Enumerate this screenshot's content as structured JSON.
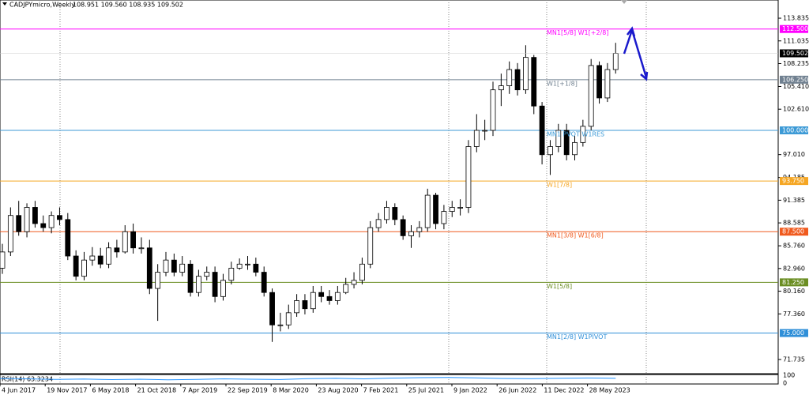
{
  "chart_data": {
    "type": "candlestick",
    "title": "CADJPYmicro,Weekly",
    "ohlc_label": "108.951 109.560 108.935 109.502",
    "ylim": [
      69.98,
      116.08
    ],
    "yticks": [
      113.835,
      111.035,
      108.235,
      {
        "value": 105.41,
        "label": "105.410"
      },
      {
        "value": 102.61,
        "label": "102.610"
      },
      {
        "value": 97.01,
        "label": "97.010"
      },
      94.185,
      91.385,
      88.585,
      {
        "value": 85.76,
        "label": "85.760"
      },
      {
        "value": 82.96,
        "label": "82.960"
      },
      {
        "value": 80.16,
        "label": "80.160"
      },
      {
        "value": 77.36,
        "label": "77.360"
      },
      71.735
    ],
    "categories": [
      "4 Jun 2017",
      "19 Nov 2017",
      "6 May 2018",
      "21 Oct 2018",
      "7 Apr 2019",
      "22 Sep 2019",
      "8 Mar 2020",
      "23 Aug 2020",
      "7 Feb 2021",
      "25 Jul 2021",
      "9 Jan 2022",
      "26 Jun 2022",
      "11 Dec 2022",
      "28 May 2023"
    ],
    "open": [
      83.0,
      85.0,
      89.5,
      87.5,
      90.5,
      88.5,
      88.0,
      89.5,
      89.0,
      84.5,
      82.0,
      84.0,
      84.5,
      83.5,
      85.5,
      85.0,
      87.5,
      85.5,
      85.5,
      80.5,
      82.5,
      84.0,
      82.5,
      83.5,
      80.0,
      82.0,
      82.5,
      79.5,
      81.5,
      83.0,
      83.5,
      83.5,
      82.5,
      80.0,
      76.0,
      76.0,
      77.5,
      79.0,
      78.0,
      80.0,
      79.5,
      79.0,
      80.0,
      81.0,
      81.5,
      83.5,
      88.0,
      89.0,
      90.5,
      89.0,
      87.0,
      87.5,
      88.0,
      92.0,
      88.5,
      90.0,
      90.5,
      90.5,
      98.0,
      100.0,
      100.0,
      105.0,
      105.5,
      107.5,
      105.0,
      109.0,
      103.0,
      97.0,
      98.0,
      100.0,
      97.0,
      98.5,
      100.5,
      108.0,
      104.0,
      107.5
    ],
    "high": [
      86.0,
      90.5,
      91.3,
      91.0,
      91.3,
      89.5,
      90.0,
      90.5,
      89.8,
      85.2,
      85.0,
      85.6,
      85.5,
      86.2,
      86.5,
      88.3,
      88.5,
      86.8,
      86.5,
      83.5,
      85.0,
      84.8,
      84.5,
      84.0,
      82.8,
      83.2,
      83.2,
      82.3,
      83.8,
      84.2,
      84.5,
      84.3,
      83.2,
      80.5,
      77.5,
      78.5,
      79.8,
      79.8,
      80.8,
      80.8,
      80.3,
      80.8,
      81.8,
      82.5,
      84.3,
      88.8,
      89.8,
      91.3,
      91.0,
      89.5,
      88.3,
      88.8,
      92.8,
      92.3,
      90.8,
      91.3,
      91.5,
      98.8,
      102.0,
      101.3,
      106.0,
      107.0,
      108.5,
      108.3,
      110.5,
      109.3,
      103.5,
      98.8,
      100.8,
      100.8,
      99.3,
      101.3,
      108.8,
      108.5,
      108.3,
      110.8
    ],
    "low": [
      82.3,
      84.5,
      87.0,
      86.8,
      88.0,
      87.5,
      87.3,
      88.3,
      84.0,
      81.5,
      81.5,
      83.3,
      83.0,
      83.0,
      84.3,
      84.8,
      84.8,
      84.8,
      79.8,
      76.5,
      82.0,
      82.0,
      82.0,
      79.5,
      79.5,
      81.5,
      78.8,
      79.0,
      81.0,
      82.8,
      82.8,
      82.0,
      79.5,
      73.9,
      75.2,
      75.5,
      77.0,
      77.3,
      77.5,
      78.8,
      78.5,
      78.5,
      79.8,
      80.5,
      81.0,
      83.0,
      87.5,
      88.5,
      88.3,
      86.5,
      85.5,
      86.8,
      87.5,
      87.8,
      87.8,
      89.3,
      89.5,
      89.8,
      97.3,
      98.8,
      99.3,
      103.0,
      104.5,
      104.3,
      104.5,
      102.0,
      95.8,
      94.5,
      97.3,
      96.3,
      96.3,
      98.0,
      100.0,
      103.3,
      103.5,
      107.0
    ],
    "close": [
      85.0,
      89.5,
      87.5,
      90.5,
      88.5,
      88.0,
      89.5,
      89.0,
      84.5,
      82.0,
      84.0,
      84.5,
      83.5,
      85.5,
      85.0,
      87.5,
      85.5,
      85.5,
      80.5,
      82.5,
      84.0,
      82.5,
      83.5,
      80.0,
      82.0,
      82.5,
      79.5,
      81.5,
      83.0,
      83.5,
      83.5,
      82.5,
      80.0,
      76.0,
      76.0,
      77.5,
      79.0,
      78.0,
      80.0,
      79.5,
      79.0,
      80.0,
      81.0,
      81.5,
      83.5,
      88.0,
      89.0,
      90.5,
      89.0,
      87.0,
      87.5,
      88.0,
      92.0,
      88.5,
      90.0,
      90.5,
      90.5,
      98.0,
      100.0,
      100.0,
      105.0,
      105.5,
      107.5,
      105.0,
      109.0,
      103.0,
      97.0,
      98.0,
      100.0,
      97.0,
      98.5,
      100.5,
      108.0,
      104.0,
      107.5,
      109.5
    ],
    "current_price": 109.502,
    "levels": [
      {
        "value": 112.5,
        "label": "112.500",
        "name": "MN1[5/8] W1[+2/8]",
        "color": "#ff00ff"
      },
      {
        "value": 106.25,
        "label": "106.250",
        "name": "W1[+1/8]",
        "color": "#708090"
      },
      {
        "value": 100,
        "label": "100.000",
        "name": "MN1 PVOT W1RES",
        "color": "#3c9ad6"
      },
      {
        "value": 93.75,
        "label": "93.750",
        "name": "W1[7/8]",
        "color": "#f5a623"
      },
      {
        "value": 87.5,
        "label": "87.500",
        "name": "MN1[3/8] W1[6/8]",
        "color": "#f05a1e"
      },
      {
        "value": 81.25,
        "label": "81.250",
        "name": "W1[5/8]",
        "color": "#6b8e23"
      },
      {
        "value": 75,
        "label": "75.000",
        "name": "MN1[2/8] W1PIVOT",
        "color": "#2f8fd8"
      }
    ],
    "rsi": {
      "title": "RSI(14) 63.3234",
      "ylim": [
        0,
        100
      ],
      "yticks": [
        100,
        0
      ],
      "color": "#1e90ff",
      "values": [
        60,
        55,
        48,
        52,
        45,
        50,
        42,
        47,
        55,
        50,
        46,
        58,
        62,
        55,
        65,
        70,
        72,
        68,
        60,
        58,
        62,
        66,
        63
      ]
    }
  }
}
